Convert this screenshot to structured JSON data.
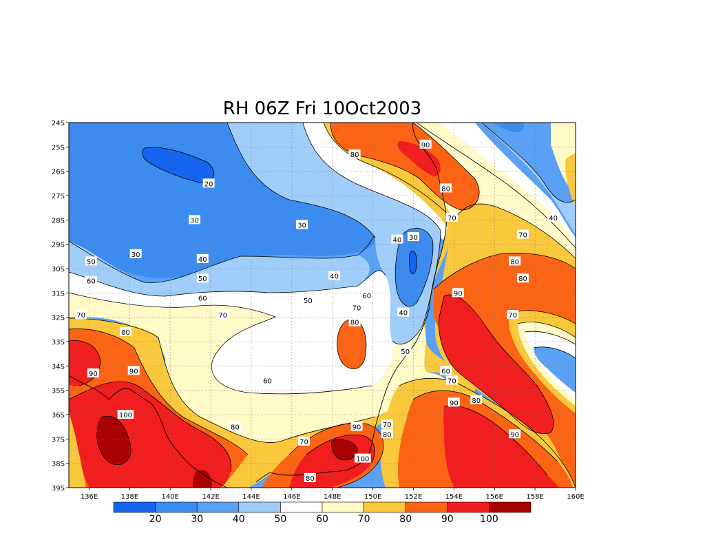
{
  "title": "RH 06Z Fri 10Oct2003",
  "variable": "RH",
  "valid_time": "06Z Fri 10Oct2003",
  "colors": {
    "background": "#ffffff",
    "levels": [
      "#1464f0",
      "#3c8cf0",
      "#5aa0f5",
      "#a0cdfa",
      "#ffffff",
      "#fffac8",
      "#fac83c",
      "#fa6414",
      "#f01e1e",
      "#aa0000"
    ]
  },
  "chart_data": {
    "type": "heatmap",
    "map": true,
    "lon_range": [
      135,
      160
    ],
    "lat_range": [
      -39,
      -24
    ],
    "grid": true,
    "x_tick_labels": [
      "136E",
      "138E",
      "140E",
      "142E",
      "144E",
      "146E",
      "148E",
      "150E",
      "152E",
      "154E",
      "156E",
      "158E",
      "160E"
    ],
    "y_tick_labels": [
      "24S",
      "25S",
      "26S",
      "27S",
      "28S",
      "29S",
      "30S",
      "31S",
      "32S",
      "33S",
      "34S",
      "35S",
      "36S",
      "37S",
      "38S",
      "39S"
    ],
    "colorbar_labels": [
      "20",
      "30",
      "40",
      "50",
      "60",
      "70",
      "80",
      "90",
      "100"
    ],
    "contour_labels": [
      {
        "text": "20",
        "lon": 141.9,
        "lat": -26.5
      },
      {
        "text": "30",
        "lon": 141.2,
        "lat": -28.0
      },
      {
        "text": "30",
        "lon": 146.5,
        "lat": -28.2
      },
      {
        "text": "30",
        "lon": 138.3,
        "lat": -29.4
      },
      {
        "text": "30",
        "lon": 152.0,
        "lat": -28.7
      },
      {
        "text": "40",
        "lon": 151.2,
        "lat": -28.8
      },
      {
        "text": "40",
        "lon": 148.1,
        "lat": -30.3
      },
      {
        "text": "40",
        "lon": 141.6,
        "lat": -29.6
      },
      {
        "text": "40",
        "lon": 158.9,
        "lat": -27.9
      },
      {
        "text": "40",
        "lon": 151.5,
        "lat": -31.8
      },
      {
        "text": "50",
        "lon": 136.1,
        "lat": -29.7
      },
      {
        "text": "50",
        "lon": 141.6,
        "lat": -30.4
      },
      {
        "text": "50",
        "lon": 146.8,
        "lat": -31.3
      },
      {
        "text": "50",
        "lon": 151.6,
        "lat": -33.4
      },
      {
        "text": "60",
        "lon": 136.1,
        "lat": -30.5
      },
      {
        "text": "60",
        "lon": 141.6,
        "lat": -31.2
      },
      {
        "text": "60",
        "lon": 149.7,
        "lat": -31.1
      },
      {
        "text": "60",
        "lon": 144.8,
        "lat": -34.6
      },
      {
        "text": "60",
        "lon": 153.6,
        "lat": -34.2
      },
      {
        "text": "70",
        "lon": 135.6,
        "lat": -31.9
      },
      {
        "text": "70",
        "lon": 142.6,
        "lat": -31.9
      },
      {
        "text": "70",
        "lon": 149.2,
        "lat": -31.6
      },
      {
        "text": "70",
        "lon": 153.9,
        "lat": -27.9
      },
      {
        "text": "70",
        "lon": 157.4,
        "lat": -28.6
      },
      {
        "text": "70",
        "lon": 156.9,
        "lat": -31.9
      },
      {
        "text": "70",
        "lon": 153.9,
        "lat": -34.6
      },
      {
        "text": "70",
        "lon": 150.7,
        "lat": -36.4
      },
      {
        "text": "70",
        "lon": 146.6,
        "lat": -37.1
      },
      {
        "text": "80",
        "lon": 149.1,
        "lat": -32.2
      },
      {
        "text": "80",
        "lon": 149.1,
        "lat": -25.3
      },
      {
        "text": "80",
        "lon": 153.6,
        "lat": -26.7
      },
      {
        "text": "80",
        "lon": 157.0,
        "lat": -29.7
      },
      {
        "text": "80",
        "lon": 157.4,
        "lat": -30.4
      },
      {
        "text": "80",
        "lon": 137.8,
        "lat": -32.6
      },
      {
        "text": "80",
        "lon": 155.1,
        "lat": -35.4
      },
      {
        "text": "80",
        "lon": 143.2,
        "lat": -36.5
      },
      {
        "text": "80",
        "lon": 150.7,
        "lat": -36.8
      },
      {
        "text": "80",
        "lon": 146.9,
        "lat": -38.6
      },
      {
        "text": "90",
        "lon": 152.6,
        "lat": -24.9
      },
      {
        "text": "90",
        "lon": 154.2,
        "lat": -31.0
      },
      {
        "text": "90",
        "lon": 136.2,
        "lat": -34.3
      },
      {
        "text": "90",
        "lon": 138.2,
        "lat": -34.2
      },
      {
        "text": "90",
        "lon": 154.0,
        "lat": -35.5
      },
      {
        "text": "90",
        "lon": 157.0,
        "lat": -36.8
      },
      {
        "text": "90",
        "lon": 149.2,
        "lat": -36.5
      },
      {
        "text": "100",
        "lon": 137.8,
        "lat": -36.0
      },
      {
        "text": "100",
        "lon": 149.5,
        "lat": -37.8
      }
    ]
  }
}
